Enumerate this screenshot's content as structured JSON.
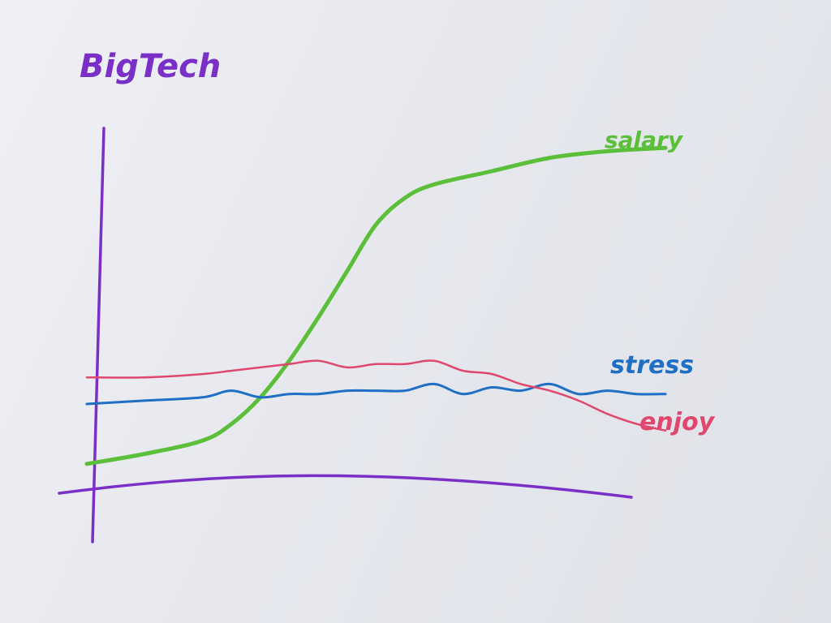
{
  "colors": {
    "axis": "#7a2fc7",
    "title": "#7a2fc7",
    "salary": "#5cbf3a",
    "stress": "#1f6fc4",
    "enjoy": "#e0476e"
  },
  "chart_data": {
    "type": "line",
    "title": "BigTech",
    "xlabel": "",
    "ylabel": "",
    "xlim": [
      0,
      100
    ],
    "ylim": [
      0,
      100
    ],
    "grid": false,
    "legend": "inline labels at line ends",
    "series": [
      {
        "name": "salary",
        "x": [
          0,
          10,
          20,
          25,
          30,
          35,
          40,
          45,
          50,
          55,
          60,
          70,
          80,
          90,
          100
        ],
        "y": [
          2,
          5,
          9,
          14,
          22,
          33,
          46,
          60,
          74,
          82,
          86,
          90,
          94,
          96,
          97
        ]
      },
      {
        "name": "stress",
        "x": [
          0,
          10,
          20,
          25,
          30,
          35,
          40,
          45,
          50,
          55,
          60,
          65,
          70,
          75,
          80,
          85,
          90,
          95,
          100
        ],
        "y": [
          20,
          21,
          22,
          24,
          22,
          23,
          23,
          24,
          24,
          24,
          26,
          23,
          25,
          24,
          26,
          23,
          24,
          23,
          23
        ]
      },
      {
        "name": "enjoy",
        "x": [
          0,
          10,
          20,
          25,
          30,
          35,
          40,
          45,
          50,
          55,
          60,
          65,
          70,
          75,
          80,
          85,
          90,
          95,
          100
        ],
        "y": [
          28,
          28,
          29,
          30,
          31,
          32,
          33,
          31,
          32,
          32,
          33,
          30,
          29,
          26,
          24,
          21,
          17,
          14,
          12
        ]
      }
    ]
  }
}
